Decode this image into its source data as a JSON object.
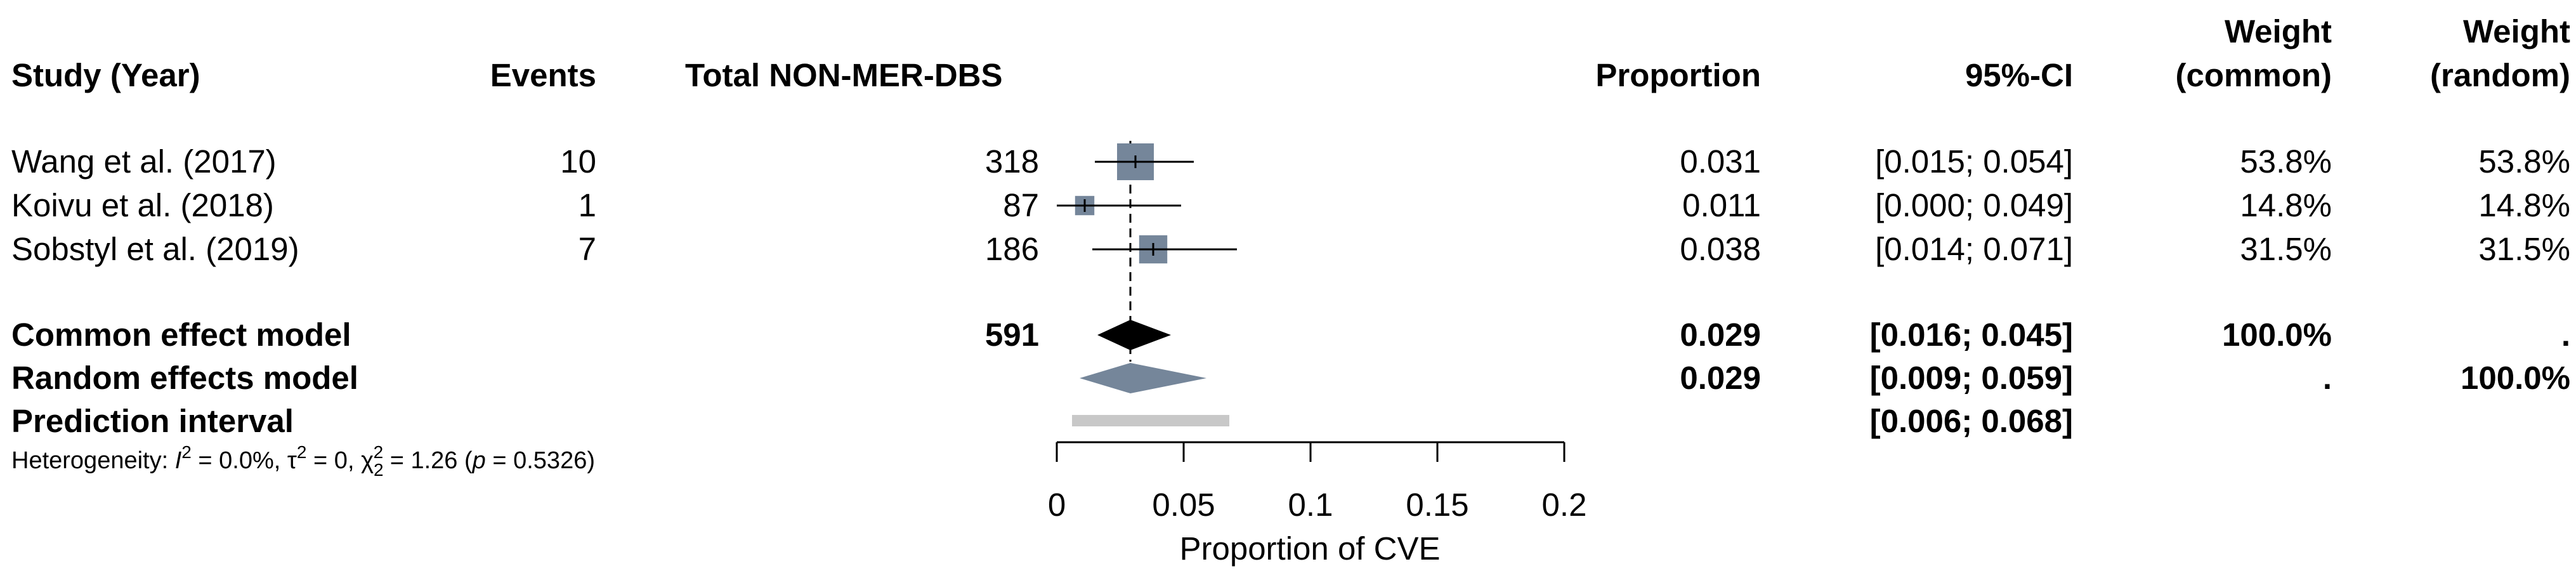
{
  "chart_data": {
    "type": "forest",
    "columns": {
      "study": "Study (Year)",
      "events": "Events",
      "total": "Total NON-MER-DBS",
      "proportion": "Proportion",
      "ci": "95%-CI",
      "weight_common": [
        "Weight",
        "(common)"
      ],
      "weight_random": [
        "Weight",
        "(random)"
      ]
    },
    "studies": [
      {
        "study": "Wang et al. (2017)",
        "events": "10",
        "total": "318",
        "proportion": 0.031,
        "proportion_label": "0.031",
        "lower": 0.015,
        "upper": 0.054,
        "ci_label": "[0.015; 0.054]",
        "w_common": 53.8,
        "w_common_label": "53.8%",
        "w_random": "53.8%"
      },
      {
        "study": "Koivu et al. (2018)",
        "events": "1",
        "total": "87",
        "proportion": 0.011,
        "proportion_label": "0.011",
        "lower": 0.0,
        "upper": 0.049,
        "ci_label": "[0.000; 0.049]",
        "w_common": 14.8,
        "w_common_label": "14.8%",
        "w_random": "14.8%"
      },
      {
        "study": "Sobstyl et al. (2019)",
        "events": "7",
        "total": "186",
        "proportion": 0.038,
        "proportion_label": "0.038",
        "lower": 0.014,
        "upper": 0.071,
        "ci_label": "[0.014; 0.071]",
        "w_common": 31.5,
        "w_common_label": "31.5%",
        "w_random": "31.5%"
      }
    ],
    "common": {
      "label": "Common effect model",
      "total": "591",
      "estimate": 0.029,
      "estimate_label": "0.029",
      "lower": 0.016,
      "upper": 0.045,
      "ci_label": "[0.016; 0.045]",
      "w_common": "100.0%",
      "w_random": "."
    },
    "random": {
      "label": "Random effects model",
      "estimate": 0.029,
      "estimate_label": "0.029",
      "lower": 0.009,
      "upper": 0.059,
      "ci_label": "[0.009; 0.059]",
      "w_common": ".",
      "w_random": "100.0%"
    },
    "prediction": {
      "label": "Prediction interval",
      "lower": 0.006,
      "upper": 0.068,
      "ci_label": "[0.006; 0.068]"
    },
    "heterogeneity": {
      "prefix": "Heterogeneity: ",
      "i2_symbol": "I",
      "i2_exp": "2",
      "i2_value": " = 0.0%, ",
      "tau2_symbol": "τ",
      "tau2_exp": "2",
      "tau2_value": " = 0, ",
      "chi2_symbol": "χ",
      "chi2_sub": "2",
      "chi2_exp": "2",
      "chi2_value": " = 1.26 (",
      "p_symbol": "p",
      "p_value": " = 0.5326)"
    },
    "xaxis": {
      "label": "Proportion of CVE",
      "ticks": [
        0,
        0.05,
        0.1,
        0.15,
        0.2
      ],
      "tick_labels": [
        "0",
        "0.05",
        "0.1",
        "0.15",
        "0.2"
      ],
      "xlim": [
        0,
        0.2
      ],
      "reference_line": 0.029
    },
    "colors": {
      "square": "#75869a",
      "random_diamond": "#75869a",
      "common_diamond": "#000000",
      "prediction_bar": "#c8c8c8",
      "lines": "#000000"
    }
  }
}
